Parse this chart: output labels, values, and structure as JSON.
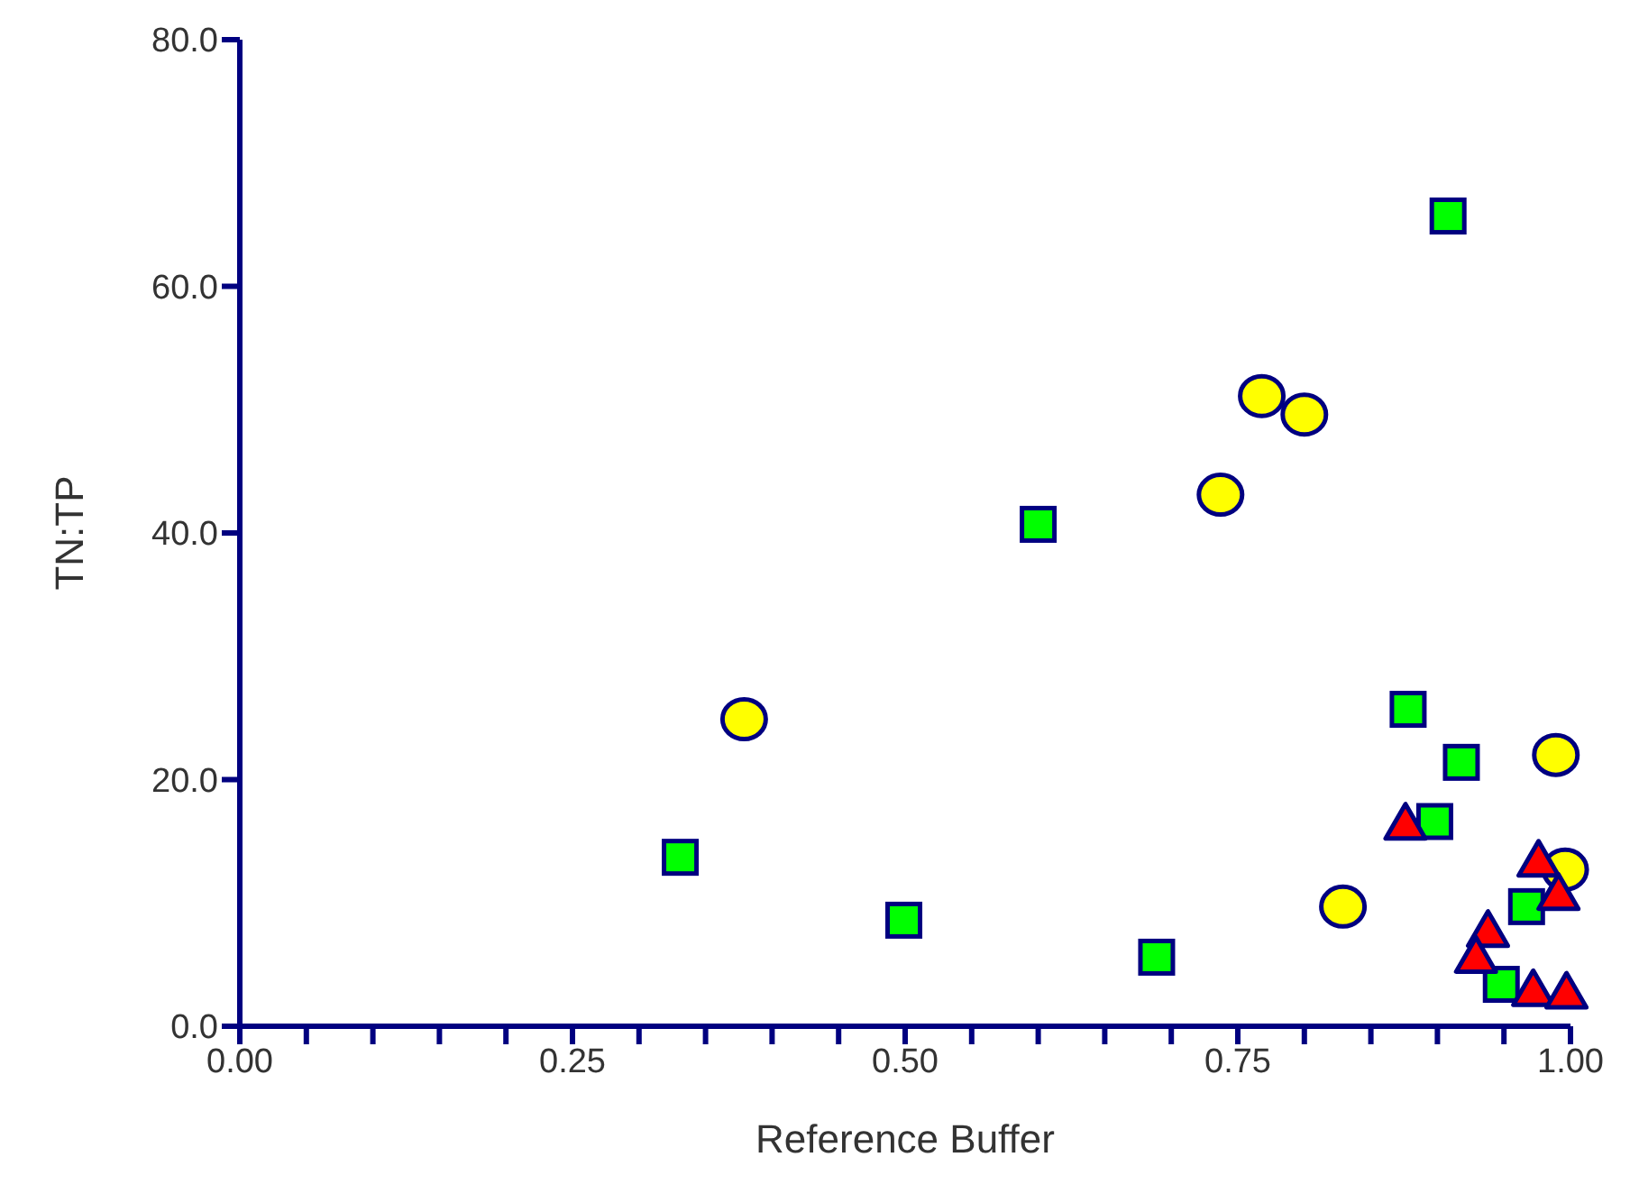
{
  "chart_data": {
    "type": "scatter",
    "xlabel": "Reference Buffer",
    "ylabel": "TN:TP",
    "xlim": [
      0,
      1
    ],
    "ylim": [
      0,
      80
    ],
    "xticks": [
      {
        "value": 0,
        "label": "0.00"
      },
      {
        "value": 0.05,
        "label": null
      },
      {
        "value": 0.1,
        "label": null
      },
      {
        "value": 0.15,
        "label": null
      },
      {
        "value": 0.2,
        "label": null
      },
      {
        "value": 0.25,
        "label": "0.25"
      },
      {
        "value": 0.3,
        "label": null
      },
      {
        "value": 0.35,
        "label": null
      },
      {
        "value": 0.4,
        "label": null
      },
      {
        "value": 0.45,
        "label": null
      },
      {
        "value": 0.5,
        "label": "0.50"
      },
      {
        "value": 0.55,
        "label": null
      },
      {
        "value": 0.6,
        "label": null
      },
      {
        "value": 0.65,
        "label": null
      },
      {
        "value": 0.7,
        "label": null
      },
      {
        "value": 0.75,
        "label": "0.75"
      },
      {
        "value": 0.8,
        "label": null
      },
      {
        "value": 0.85,
        "label": null
      },
      {
        "value": 0.9,
        "label": null
      },
      {
        "value": 0.95,
        "label": null
      },
      {
        "value": 1,
        "label": "1.00"
      }
    ],
    "yticks": [
      {
        "value": 0,
        "label": "0.0"
      },
      {
        "value": 20,
        "label": "20.0"
      },
      {
        "value": 40,
        "label": "40.0"
      },
      {
        "value": 60,
        "label": "60.0"
      },
      {
        "value": 80,
        "label": "80.0"
      }
    ],
    "grid": false,
    "legend": false,
    "series": [
      {
        "color": "#00ff00",
        "marker": "square",
        "x": [
          0.331,
          0.499,
          0.6,
          0.689,
          0.878,
          0.908,
          0.918,
          0.898,
          0.967,
          0.948
        ],
        "values": [
          13.7,
          8.6,
          40.7,
          5.6,
          25.7,
          65.7,
          21.4,
          16.6,
          9.7,
          3.4
        ]
      },
      {
        "color": "#ffff00",
        "marker": "circle",
        "x": [
          0.379,
          0.737,
          0.768,
          0.8,
          0.829,
          0.989,
          0.996
        ],
        "values": [
          24.9,
          43.1,
          51.1,
          49.6,
          9.7,
          22.0,
          12.7
        ]
      },
      {
        "color": "#ff0000",
        "marker": "triangle",
        "x": [
          0.876,
          0.976,
          0.991,
          0.938,
          0.929,
          0.972,
          0.997
        ],
        "values": [
          16.4,
          13.4,
          10.7,
          7.7,
          5.6,
          2.9,
          2.7
        ]
      }
    ]
  }
}
